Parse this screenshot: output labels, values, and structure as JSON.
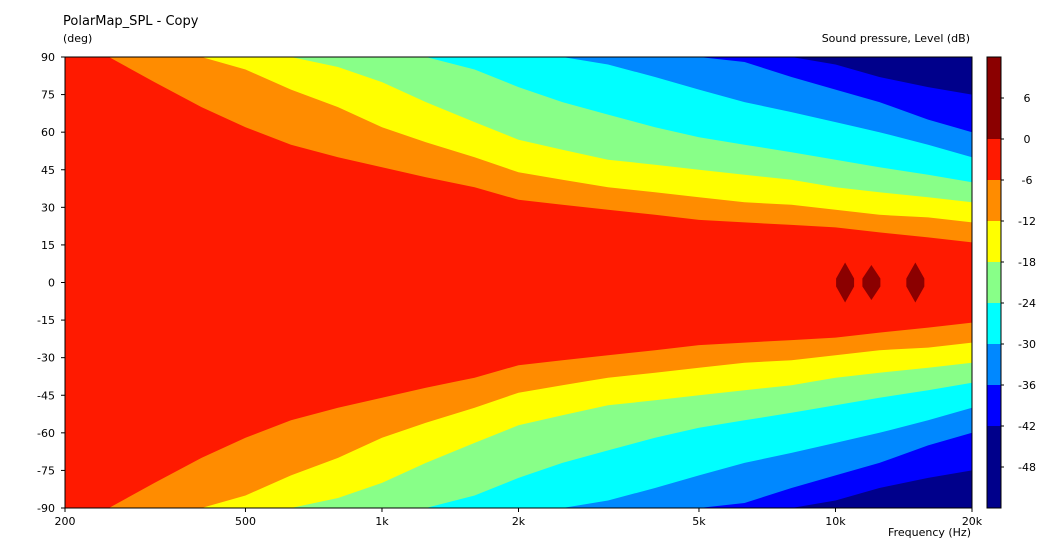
{
  "chart_data": {
    "type": "heatmap",
    "title": "PolarMap_SPL - Copy",
    "ylabel": "(deg)",
    "xlabel": "Frequency  (Hz)",
    "colorbar_label": "Sound pressure, Level  (dB)",
    "x_scale": "log",
    "xlim": [
      200,
      20000
    ],
    "ylim": [
      -90,
      90
    ],
    "x_ticks": [
      200,
      500,
      1000,
      2000,
      5000,
      10000,
      20000
    ],
    "x_tick_labels": [
      "200",
      "500",
      "1k",
      "2k",
      "5k",
      "10k",
      "20k"
    ],
    "y_ticks": [
      90,
      75,
      60,
      45,
      30,
      15,
      0,
      -15,
      -30,
      -45,
      -60,
      -75,
      -90
    ],
    "y_tick_labels": [
      "90",
      "75",
      "60",
      "45",
      "30",
      "15",
      "0",
      "-15",
      "-30",
      "-45",
      "-60",
      "-75",
      "-90"
    ],
    "colorbar_ticks": [
      6,
      0,
      -6,
      -12,
      -18,
      -24,
      -30,
      -36,
      -42,
      -48
    ],
    "colorbar_tick_labels": [
      "6",
      "0",
      "-6",
      "-12",
      "-18",
      "-24",
      "-30",
      "-36",
      "-42",
      "-48"
    ],
    "levels": [
      {
        "range": [
          0,
          6
        ],
        "color": "#8b0000"
      },
      {
        "range": [
          -6,
          0
        ],
        "color": "#ff1a00"
      },
      {
        "range": [
          -12,
          -6
        ],
        "color": "#ff8c00"
      },
      {
        "range": [
          -18,
          -12
        ],
        "color": "#ffff00"
      },
      {
        "range": [
          -24,
          -18
        ],
        "color": "#88ff88"
      },
      {
        "range": [
          -30,
          -24
        ],
        "color": "#00ffff"
      },
      {
        "range": [
          -36,
          -30
        ],
        "color": "#0088ff"
      },
      {
        "range": [
          -42,
          -36
        ],
        "color": "#0000ff"
      },
      {
        "range": [
          -48,
          -42
        ],
        "color": "#00008b"
      }
    ],
    "contour_frequencies": [
      200,
      250,
      315,
      400,
      500,
      630,
      800,
      1000,
      1250,
      1600,
      2000,
      2500,
      3150,
      4000,
      5000,
      6300,
      8000,
      10000,
      12500,
      16000,
      20000
    ],
    "contour_angles_deg": [
      {
        "level_db": -6,
        "angles": [
          90,
          90,
          80,
          70,
          62,
          55,
          50,
          46,
          42,
          38,
          33,
          31,
          29,
          27,
          25,
          24,
          23,
          22,
          20,
          18,
          16
        ]
      },
      {
        "level_db": -12,
        "angles": [
          90,
          90,
          90,
          90,
          85,
          77,
          70,
          62,
          56,
          50,
          44,
          41,
          38,
          36,
          34,
          32,
          31,
          29,
          27,
          26,
          24
        ]
      },
      {
        "level_db": -18,
        "angles": [
          90,
          90,
          90,
          90,
          90,
          90,
          86,
          80,
          72,
          64,
          57,
          53,
          49,
          47,
          45,
          43,
          41,
          38,
          36,
          34,
          32
        ]
      },
      {
        "level_db": -24,
        "angles": [
          90,
          90,
          90,
          90,
          90,
          90,
          90,
          90,
          90,
          85,
          78,
          72,
          67,
          62,
          58,
          55,
          52,
          49,
          46,
          43,
          40
        ]
      },
      {
        "level_db": -30,
        "angles": [
          90,
          90,
          90,
          90,
          90,
          90,
          90,
          90,
          90,
          90,
          90,
          90,
          87,
          82,
          77,
          72,
          68,
          64,
          60,
          55,
          50
        ]
      },
      {
        "level_db": -36,
        "angles": [
          90,
          90,
          90,
          90,
          90,
          90,
          90,
          90,
          90,
          90,
          90,
          90,
          90,
          90,
          90,
          88,
          82,
          77,
          72,
          65,
          60
        ]
      },
      {
        "level_db": -42,
        "angles": [
          90,
          90,
          90,
          90,
          90,
          90,
          90,
          90,
          90,
          90,
          90,
          90,
          90,
          90,
          90,
          90,
          90,
          87,
          82,
          78,
          75
        ]
      }
    ],
    "peak_regions": [
      {
        "level_db": 0,
        "frequency": 10500,
        "angles": [
          -8,
          8
        ]
      },
      {
        "level_db": 0,
        "frequency": 12000,
        "angles": [
          -7,
          7
        ]
      },
      {
        "level_db": 0,
        "frequency": 15000,
        "angles": [
          -8,
          8
        ]
      }
    ],
    "grid": false,
    "legend": "colorbar-right"
  }
}
